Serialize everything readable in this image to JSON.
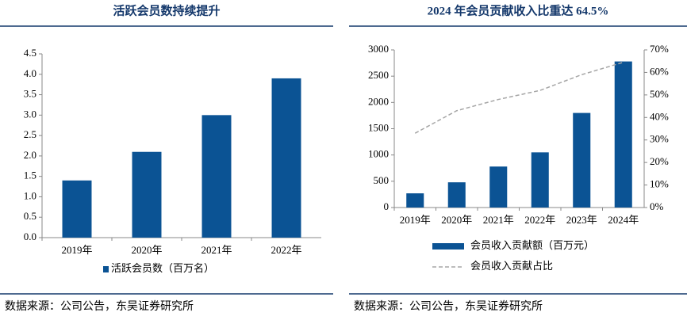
{
  "chart_data": [
    {
      "type": "bar",
      "title": "活跃会员数持续提升",
      "categories": [
        "2019年",
        "2020年",
        "2021年",
        "2022年"
      ],
      "series": [
        {
          "name": "活跃会员数（百万名）",
          "color": "#0b5394",
          "values": [
            1.4,
            2.1,
            3.0,
            3.9
          ]
        }
      ],
      "ylim": [
        0,
        4.5
      ],
      "yticks": [
        {
          "value": 0,
          "label": "0.0"
        },
        0.5,
        {
          "value": 1,
          "label": "1.0"
        },
        1.5,
        {
          "value": 2,
          "label": "2.0"
        },
        2.5,
        {
          "value": 3,
          "label": "3.0"
        },
        3.5,
        {
          "value": 4,
          "label": "4.0"
        },
        4.5
      ],
      "legend": "bottom",
      "source": "数据来源：公司公告，东吴证券研究所"
    },
    {
      "type": "bar",
      "title": "2024 年会员贡献收入比重达 64.5%",
      "categories": [
        "2019年",
        "2020年",
        "2021年",
        "2022年",
        "2023年",
        "2024年"
      ],
      "series": [
        {
          "name": "会员收入贡献额（百万元）",
          "color": "#0b5394",
          "values": [
            270,
            480,
            780,
            1050,
            1800,
            2780
          ]
        },
        {
          "name": "会员收入贡献占比",
          "color": "#a6a6a6",
          "values": [
            33,
            43,
            48,
            52,
            59,
            64.5
          ],
          "axis": "y2",
          "line_style": "dashed"
        }
      ],
      "ylim": [
        0,
        3000
      ],
      "yticks": [
        0,
        500,
        1000,
        1500,
        2000,
        2500,
        3000
      ],
      "y2lim": [
        0,
        70
      ],
      "y2ticks": [
        {
          "value": 0,
          "label": "0%"
        },
        {
          "value": 10,
          "label": "10%"
        },
        {
          "value": 20,
          "label": "20%"
        },
        {
          "value": 30,
          "label": "30%"
        },
        {
          "value": 40,
          "label": "40%"
        },
        {
          "value": 50,
          "label": "50%"
        },
        {
          "value": 60,
          "label": "60%"
        },
        {
          "value": 70,
          "label": "70%"
        }
      ],
      "legend": "bottom",
      "source": "数据来源：公司公告，东吴证券研究所"
    }
  ]
}
